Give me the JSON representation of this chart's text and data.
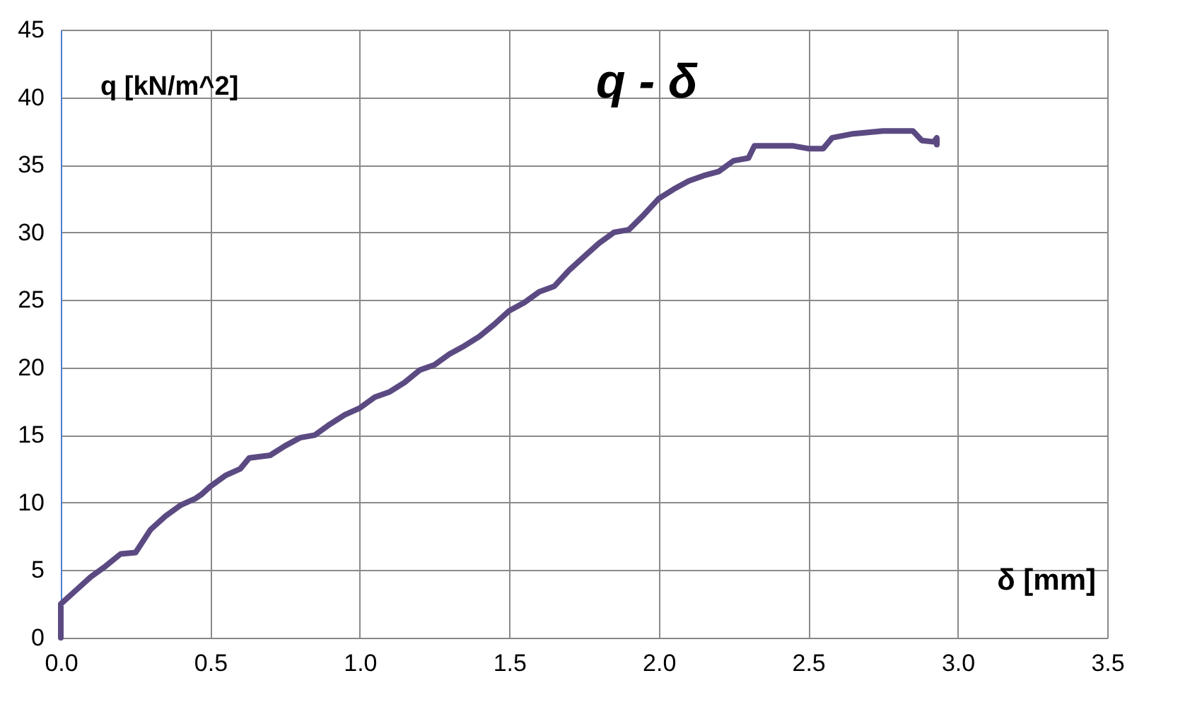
{
  "chart_data": {
    "type": "line",
    "title": "q - δ",
    "xlabel": "δ [mm]",
    "ylabel": "q [kN/m^2]",
    "xlim": [
      0,
      3.5
    ],
    "ylim": [
      0,
      45
    ],
    "xticks": [
      {
        "value": 0,
        "label": "0.0"
      },
      0.5,
      {
        "value": 1,
        "label": "1.0"
      },
      1.5,
      {
        "value": 2,
        "label": "2.0"
      },
      2.5,
      {
        "value": 3,
        "label": "3.0"
      },
      3.5
    ],
    "yticks": [
      0,
      5,
      10,
      15,
      20,
      25,
      30,
      35,
      40,
      45
    ],
    "grid": true,
    "marker": "none",
    "line_style": "solid",
    "series": [
      {
        "color": "#5b4a82",
        "x": [
          0,
          0,
          0.05,
          0.1,
          0.15,
          0.2,
          0.25,
          0.3,
          0.35,
          0.4,
          0.45,
          0.47,
          0.5,
          0.55,
          0.6,
          0.63,
          0.7,
          0.75,
          0.8,
          0.85,
          0.9,
          0.95,
          1.0,
          1.05,
          1.1,
          1.15,
          1.2,
          1.25,
          1.3,
          1.35,
          1.4,
          1.45,
          1.5,
          1.55,
          1.6,
          1.65,
          1.7,
          1.75,
          1.8,
          1.85,
          1.9,
          1.95,
          2.0,
          2.05,
          2.1,
          2.15,
          2.2,
          2.25,
          2.3,
          2.32,
          2.45,
          2.5,
          2.55,
          2.58,
          2.65,
          2.75,
          2.85,
          2.88,
          2.92,
          2.93,
          2.93
        ],
        "values": [
          0,
          2.5,
          3.5,
          4.5,
          5.3,
          6.2,
          6.3,
          8.0,
          9.0,
          9.8,
          10.3,
          10.6,
          11.2,
          12.0,
          12.5,
          13.3,
          13.5,
          14.2,
          14.8,
          15.0,
          15.8,
          16.5,
          17.0,
          17.8,
          18.2,
          18.9,
          19.8,
          20.2,
          21.0,
          21.6,
          22.3,
          23.2,
          24.2,
          24.8,
          25.6,
          26.0,
          27.2,
          28.2,
          29.2,
          30.0,
          30.2,
          31.3,
          32.5,
          33.2,
          33.8,
          34.2,
          34.5,
          35.3,
          35.5,
          36.4,
          36.4,
          36.2,
          36.2,
          37.0,
          37.3,
          37.5,
          37.5,
          36.8,
          36.7,
          37.0,
          36.5
        ]
      }
    ]
  }
}
